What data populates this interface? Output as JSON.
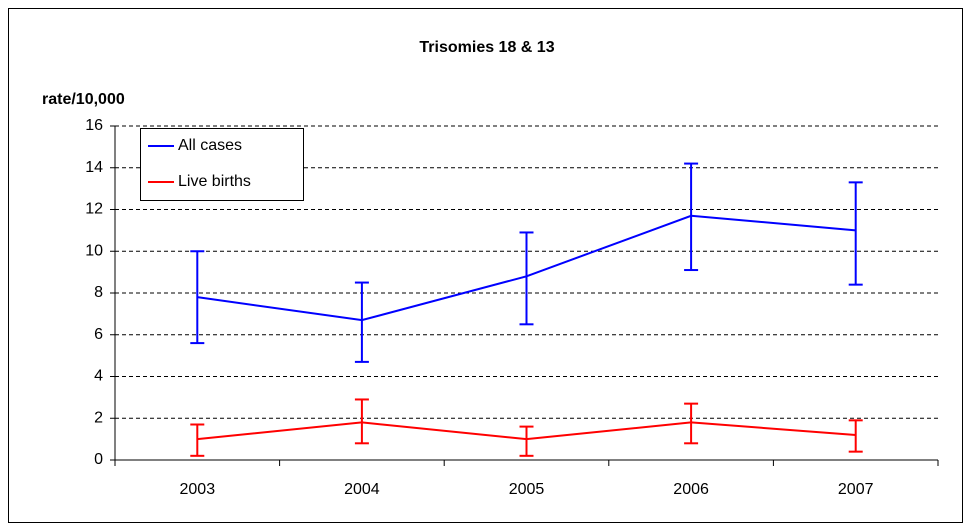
{
  "chart_data": {
    "type": "line",
    "title": "Trisomies 18 & 13",
    "y_label": "rate/10,000",
    "categories": [
      "2003",
      "2004",
      "2005",
      "2006",
      "2007"
    ],
    "series": [
      {
        "name": "All cases",
        "color": "#0000ff",
        "values": [
          7.8,
          6.7,
          8.8,
          11.7,
          11.0
        ],
        "lower": [
          5.6,
          4.7,
          6.5,
          9.1,
          8.4
        ],
        "upper": [
          10.0,
          8.5,
          10.9,
          14.2,
          13.3
        ]
      },
      {
        "name": "Live births",
        "color": "#ff0000",
        "values": [
          1.0,
          1.8,
          1.0,
          1.8,
          1.2
        ],
        "lower": [
          0.2,
          0.8,
          0.2,
          0.8,
          0.4
        ],
        "upper": [
          1.7,
          2.9,
          1.6,
          2.7,
          1.9
        ]
      }
    ],
    "ylim": [
      0,
      16
    ],
    "yticks": [
      0,
      2,
      4,
      6,
      8,
      10,
      12,
      14,
      16
    ],
    "grid": true,
    "legend": "upper left"
  }
}
